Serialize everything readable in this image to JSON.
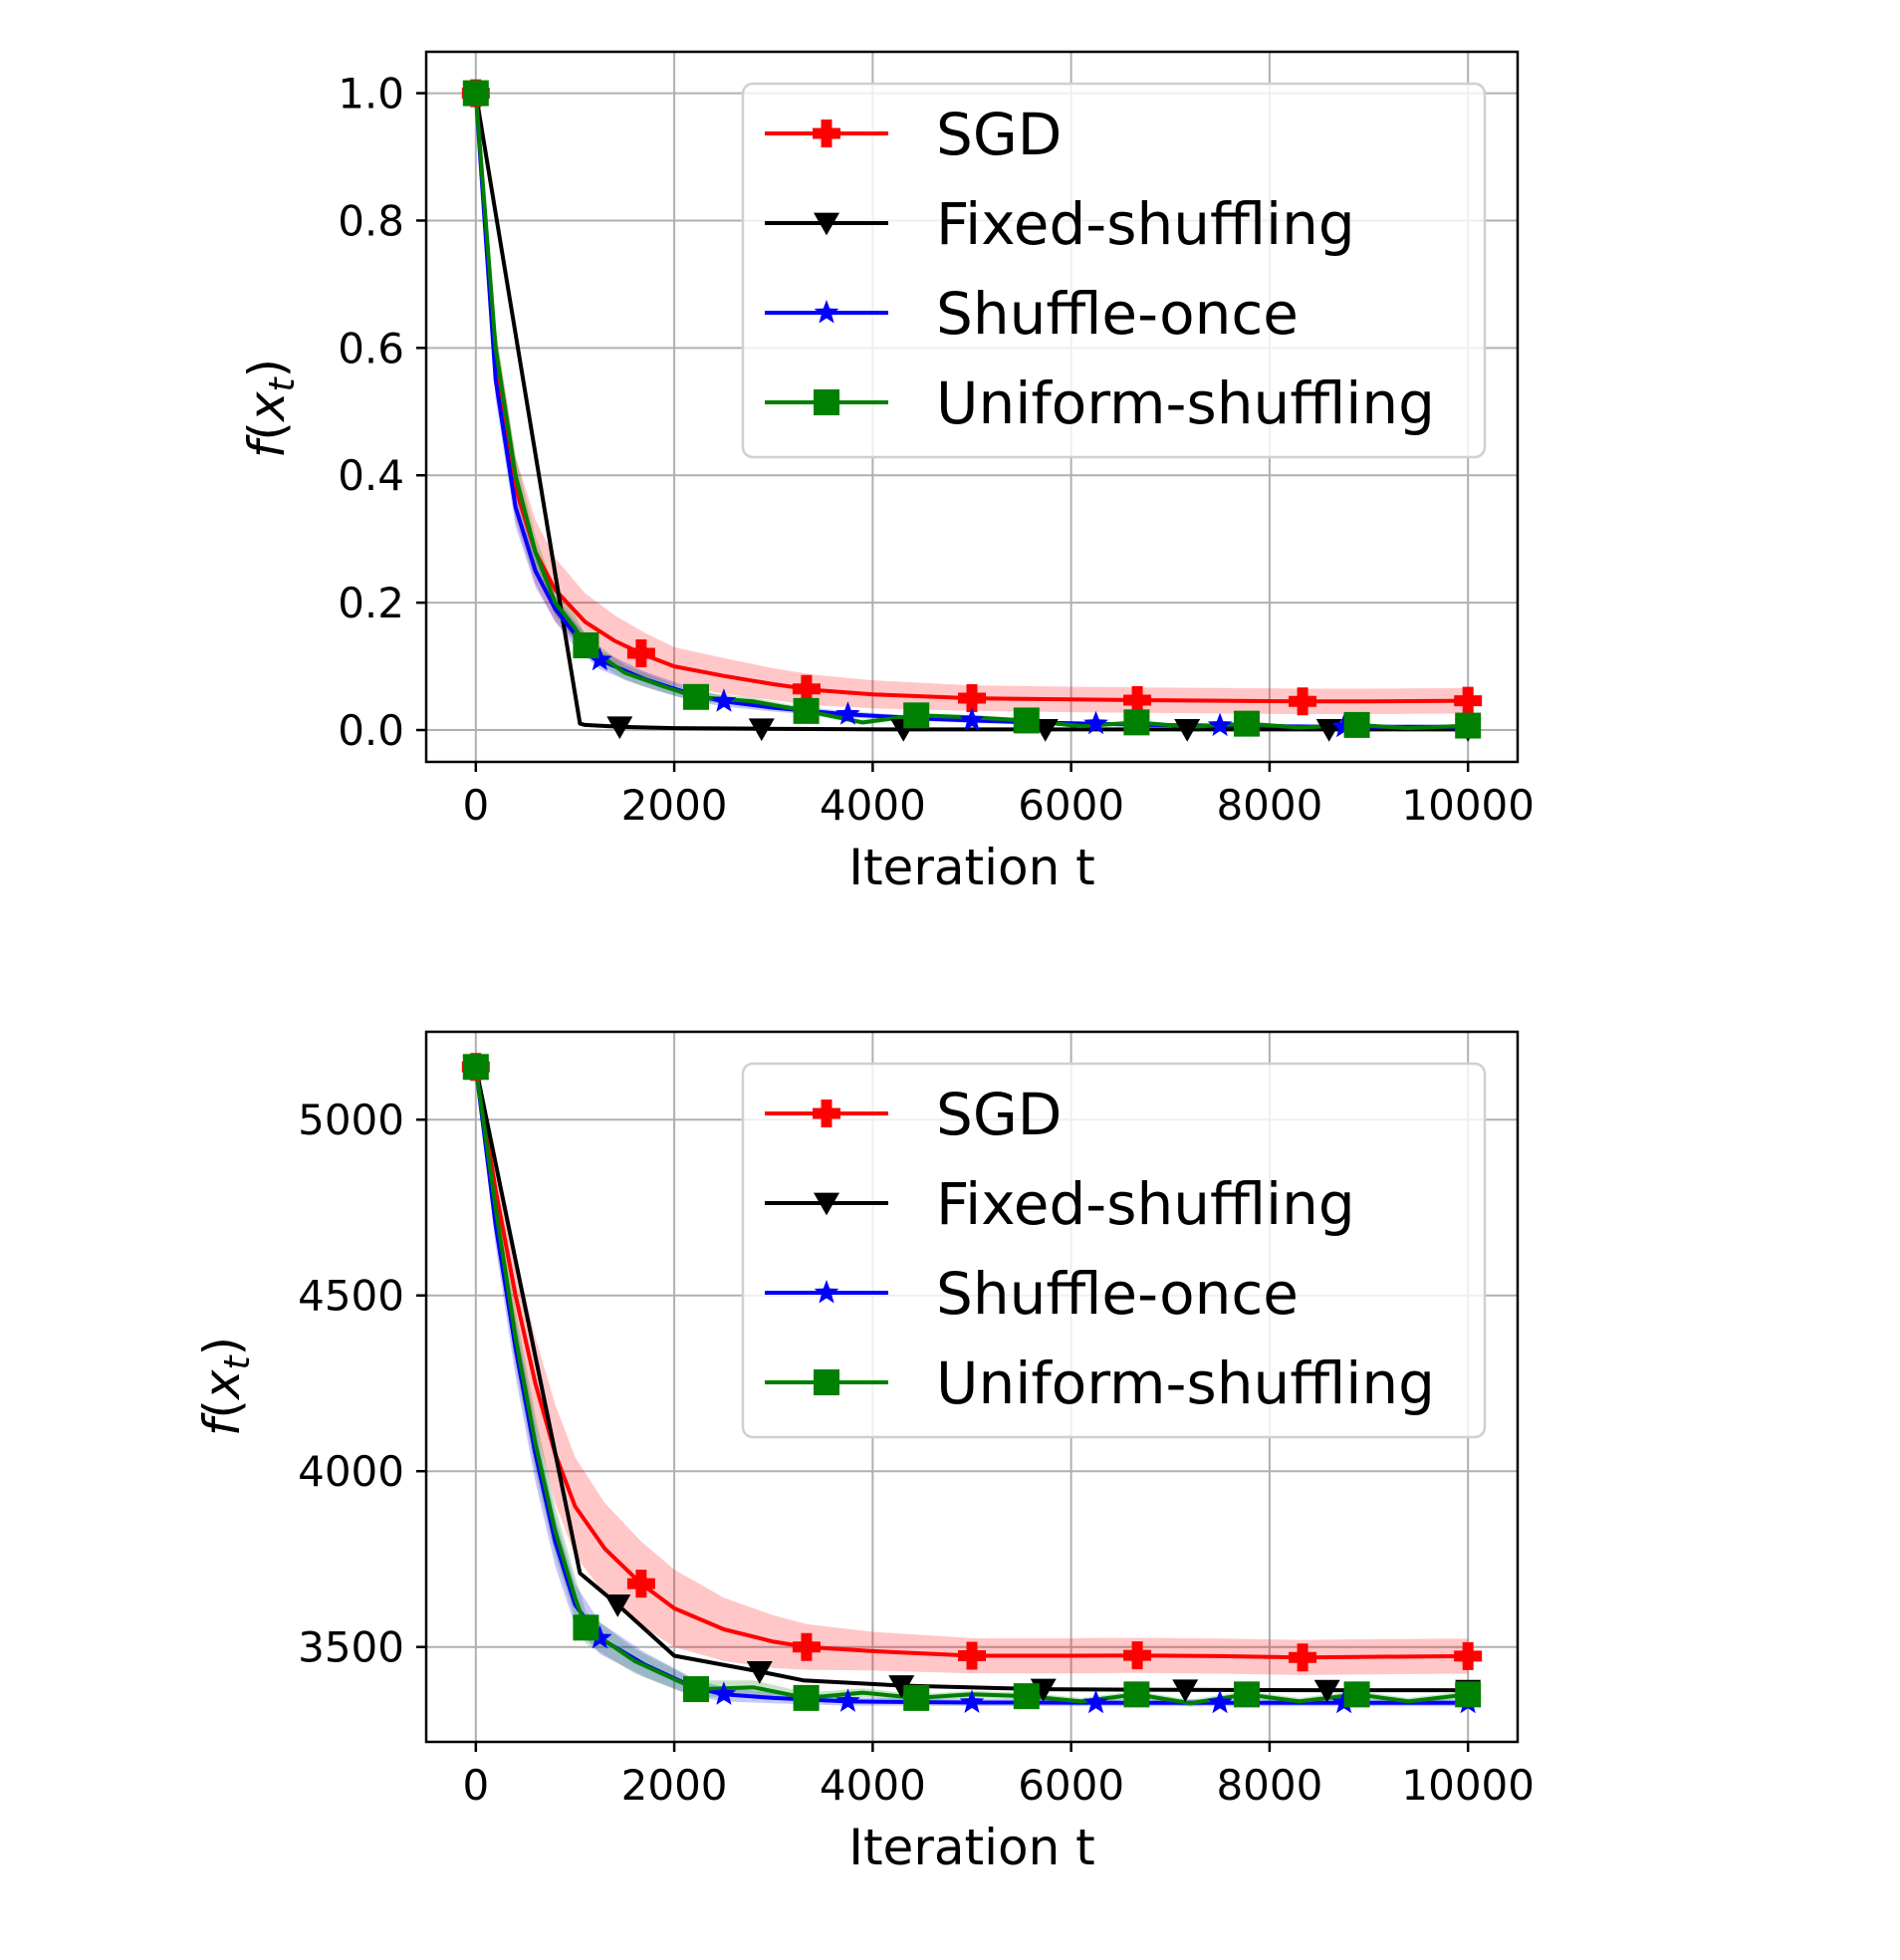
{
  "chart_data": [
    {
      "type": "line",
      "xlabel": "Iteration t",
      "ylabel": "f(x_t)",
      "xlim": [
        -500,
        10500
      ],
      "ylim": [
        -0.05,
        1.065
      ],
      "xticks": [
        0,
        2000,
        4000,
        6000,
        8000,
        10000
      ],
      "yticks": [
        0.0,
        0.2,
        0.4,
        0.6,
        0.8,
        1.0
      ],
      "ytick_labels": [
        "0.0",
        "0.2",
        "0.4",
        "0.6",
        "0.8",
        "1.0"
      ],
      "grid": true,
      "legend": "upper right",
      "series": [
        {
          "name": "SGD",
          "color": "#ff0000",
          "marker": "plus",
          "x": [
            0,
            200,
            400,
            600,
            800,
            1100,
            1400,
            1700,
            2000,
            2500,
            3000,
            3400,
            4000,
            5000,
            6000,
            6700,
            7500,
            8400,
            9000,
            10000
          ],
          "y": [
            1.0,
            0.58,
            0.38,
            0.28,
            0.22,
            0.17,
            0.14,
            0.118,
            0.1,
            0.085,
            0.072,
            0.063,
            0.056,
            0.05,
            0.048,
            0.047,
            0.046,
            0.045,
            0.045,
            0.046
          ],
          "band": [
            0.02,
            0.05,
            0.05,
            0.05,
            0.05,
            0.045,
            0.04,
            0.035,
            0.03,
            0.028,
            0.025,
            0.024,
            0.022,
            0.02,
            0.02,
            0.02,
            0.02,
            0.02,
            0.02,
            0.02
          ],
          "markers_x": [
            0,
            1667,
            3333,
            5000,
            6667,
            8333,
            10000
          ]
        },
        {
          "name": "Fixed-shuffling",
          "color": "#000000",
          "marker": "triangle-down",
          "x": [
            0,
            1050,
            1100,
            1450,
            2000,
            2900,
            4300,
            5700,
            7150,
            8600,
            10000
          ],
          "y": [
            1.0,
            0.01,
            0.008,
            0.005,
            0.003,
            0.002,
            0.001,
            0.001,
            0.001,
            0.001,
            0.001
          ],
          "markers_x": [
            0,
            1450,
            2880,
            4310,
            5740,
            7170,
            8600,
            10000
          ]
        },
        {
          "name": "Shuffle-once",
          "color": "#0000ff",
          "marker": "star",
          "x": [
            0,
            200,
            400,
            600,
            800,
            1000,
            1250,
            1700,
            2200,
            2500,
            3000,
            3700,
            4500,
            5000,
            5600,
            6200,
            6800,
            7500,
            8100,
            8700,
            9300,
            10000
          ],
          "y": [
            1.0,
            0.55,
            0.35,
            0.25,
            0.19,
            0.15,
            0.11,
            0.08,
            0.055,
            0.045,
            0.035,
            0.025,
            0.018,
            0.015,
            0.012,
            0.01,
            0.008,
            0.007,
            0.006,
            0.005,
            0.005,
            0.005
          ],
          "band": [
            0.02,
            0.03,
            0.03,
            0.025,
            0.02,
            0.02,
            0.015,
            0.012,
            0.01,
            0.008,
            0.006,
            0.005,
            0.004,
            0.004,
            0.003,
            0.003,
            0.003,
            0.003,
            0.003,
            0.003,
            0.003,
            0.003
          ],
          "markers_x": [
            0,
            1250,
            2500,
            3750,
            5000,
            6250,
            7500,
            8750,
            10000
          ]
        },
        {
          "name": "Uniform-shuffling",
          "color": "#008000",
          "marker": "square",
          "x": [
            0,
            200,
            400,
            600,
            800,
            1000,
            1110,
            1500,
            1900,
            2220,
            2800,
            3330,
            3900,
            4440,
            5000,
            5550,
            6100,
            6660,
            7200,
            7770,
            8300,
            8880,
            9400,
            10000
          ],
          "y": [
            1.0,
            0.6,
            0.4,
            0.28,
            0.2,
            0.16,
            0.133,
            0.09,
            0.068,
            0.052,
            0.045,
            0.03,
            0.012,
            0.023,
            0.02,
            0.015,
            0.006,
            0.012,
            0.005,
            0.01,
            0.004,
            0.008,
            0.003,
            0.007
          ],
          "band": [
            0.02,
            0.03,
            0.03,
            0.025,
            0.02,
            0.02,
            0.015,
            0.012,
            0.01,
            0.008,
            0.006,
            0.005,
            0.004,
            0.004,
            0.003,
            0.003,
            0.003,
            0.003,
            0.003,
            0.003,
            0.003,
            0.003,
            0.003,
            0.003
          ],
          "markers_x": [
            0,
            1110,
            2220,
            3330,
            4440,
            5550,
            6660,
            7770,
            8880,
            10000
          ]
        }
      ]
    },
    {
      "type": "line",
      "xlabel": "Iteration t",
      "ylabel": "f(x_t)",
      "xlim": [
        -500,
        10500
      ],
      "ylim": [
        3230,
        5250
      ],
      "xticks": [
        0,
        2000,
        4000,
        6000,
        8000,
        10000
      ],
      "yticks": [
        3500,
        4000,
        4500,
        5000
      ],
      "ytick_labels": [
        "3500",
        "4000",
        "4500",
        "5000"
      ],
      "grid": true,
      "legend": "upper right",
      "series": [
        {
          "name": "SGD",
          "color": "#ff0000",
          "marker": "plus",
          "x": [
            0,
            200,
            400,
            600,
            800,
            1000,
            1300,
            1667,
            2000,
            2500,
            3000,
            3333,
            4000,
            5000,
            6000,
            6667,
            7500,
            8333,
            9000,
            10000
          ],
          "y": [
            5150,
            4800,
            4500,
            4250,
            4050,
            3900,
            3780,
            3680,
            3610,
            3550,
            3515,
            3500,
            3488,
            3475,
            3475,
            3476,
            3474,
            3470,
            3472,
            3474
          ],
          "band": [
            20,
            80,
            110,
            130,
            140,
            140,
            130,
            120,
            110,
            90,
            75,
            65,
            55,
            50,
            50,
            50,
            50,
            50,
            50,
            50
          ],
          "markers_x": [
            0,
            1667,
            3333,
            5000,
            6667,
            8333,
            10000
          ]
        },
        {
          "name": "Fixed-shuffling",
          "color": "#000000",
          "marker": "triangle-down",
          "x": [
            0,
            1050,
            1430,
            2000,
            2860,
            3300,
            4290,
            5720,
            7150,
            8580,
            10000
          ],
          "y": [
            5150,
            3710,
            3620,
            3475,
            3430,
            3405,
            3390,
            3380,
            3378,
            3377,
            3377
          ],
          "markers_x": [
            0,
            1430,
            2860,
            4290,
            5720,
            7150,
            8580,
            10000
          ]
        },
        {
          "name": "Shuffle-once",
          "color": "#0000ff",
          "marker": "star",
          "x": [
            0,
            200,
            400,
            600,
            800,
            1000,
            1250,
            1700,
            2200,
            2500,
            3000,
            3750,
            4500,
            5000,
            5600,
            6250,
            6900,
            7500,
            8100,
            8750,
            9400,
            10000
          ],
          "y": [
            5150,
            4700,
            4350,
            4050,
            3800,
            3620,
            3525,
            3450,
            3385,
            3365,
            3355,
            3345,
            3343,
            3342,
            3342,
            3341,
            3341,
            3341,
            3341,
            3341,
            3341,
            3341
          ],
          "band": [
            20,
            60,
            80,
            80,
            70,
            60,
            45,
            35,
            25,
            20,
            15,
            12,
            10,
            10,
            10,
            10,
            10,
            10,
            10,
            10,
            10,
            10
          ],
          "markers_x": [
            0,
            1250,
            2500,
            3750,
            5000,
            6250,
            7500,
            8750,
            10000
          ]
        },
        {
          "name": "Uniform-shuffling",
          "color": "#008000",
          "marker": "square",
          "x": [
            0,
            200,
            400,
            600,
            800,
            1000,
            1110,
            1600,
            2220,
            2800,
            3330,
            3900,
            4440,
            5000,
            5550,
            6100,
            6660,
            7200,
            7770,
            8300,
            8880,
            9400,
            10000
          ],
          "y": [
            5150,
            4750,
            4380,
            4080,
            3830,
            3640,
            3555,
            3460,
            3380,
            3385,
            3355,
            3370,
            3355,
            3365,
            3360,
            3345,
            3365,
            3340,
            3365,
            3345,
            3365,
            3345,
            3365
          ],
          "band": [
            20,
            60,
            80,
            80,
            70,
            60,
            45,
            35,
            25,
            20,
            15,
            12,
            10,
            10,
            10,
            10,
            10,
            10,
            10,
            10,
            10,
            10,
            10
          ],
          "markers_x": [
            0,
            1110,
            2220,
            3330,
            4440,
            5550,
            6660,
            7770,
            8880,
            10000
          ]
        }
      ]
    }
  ]
}
